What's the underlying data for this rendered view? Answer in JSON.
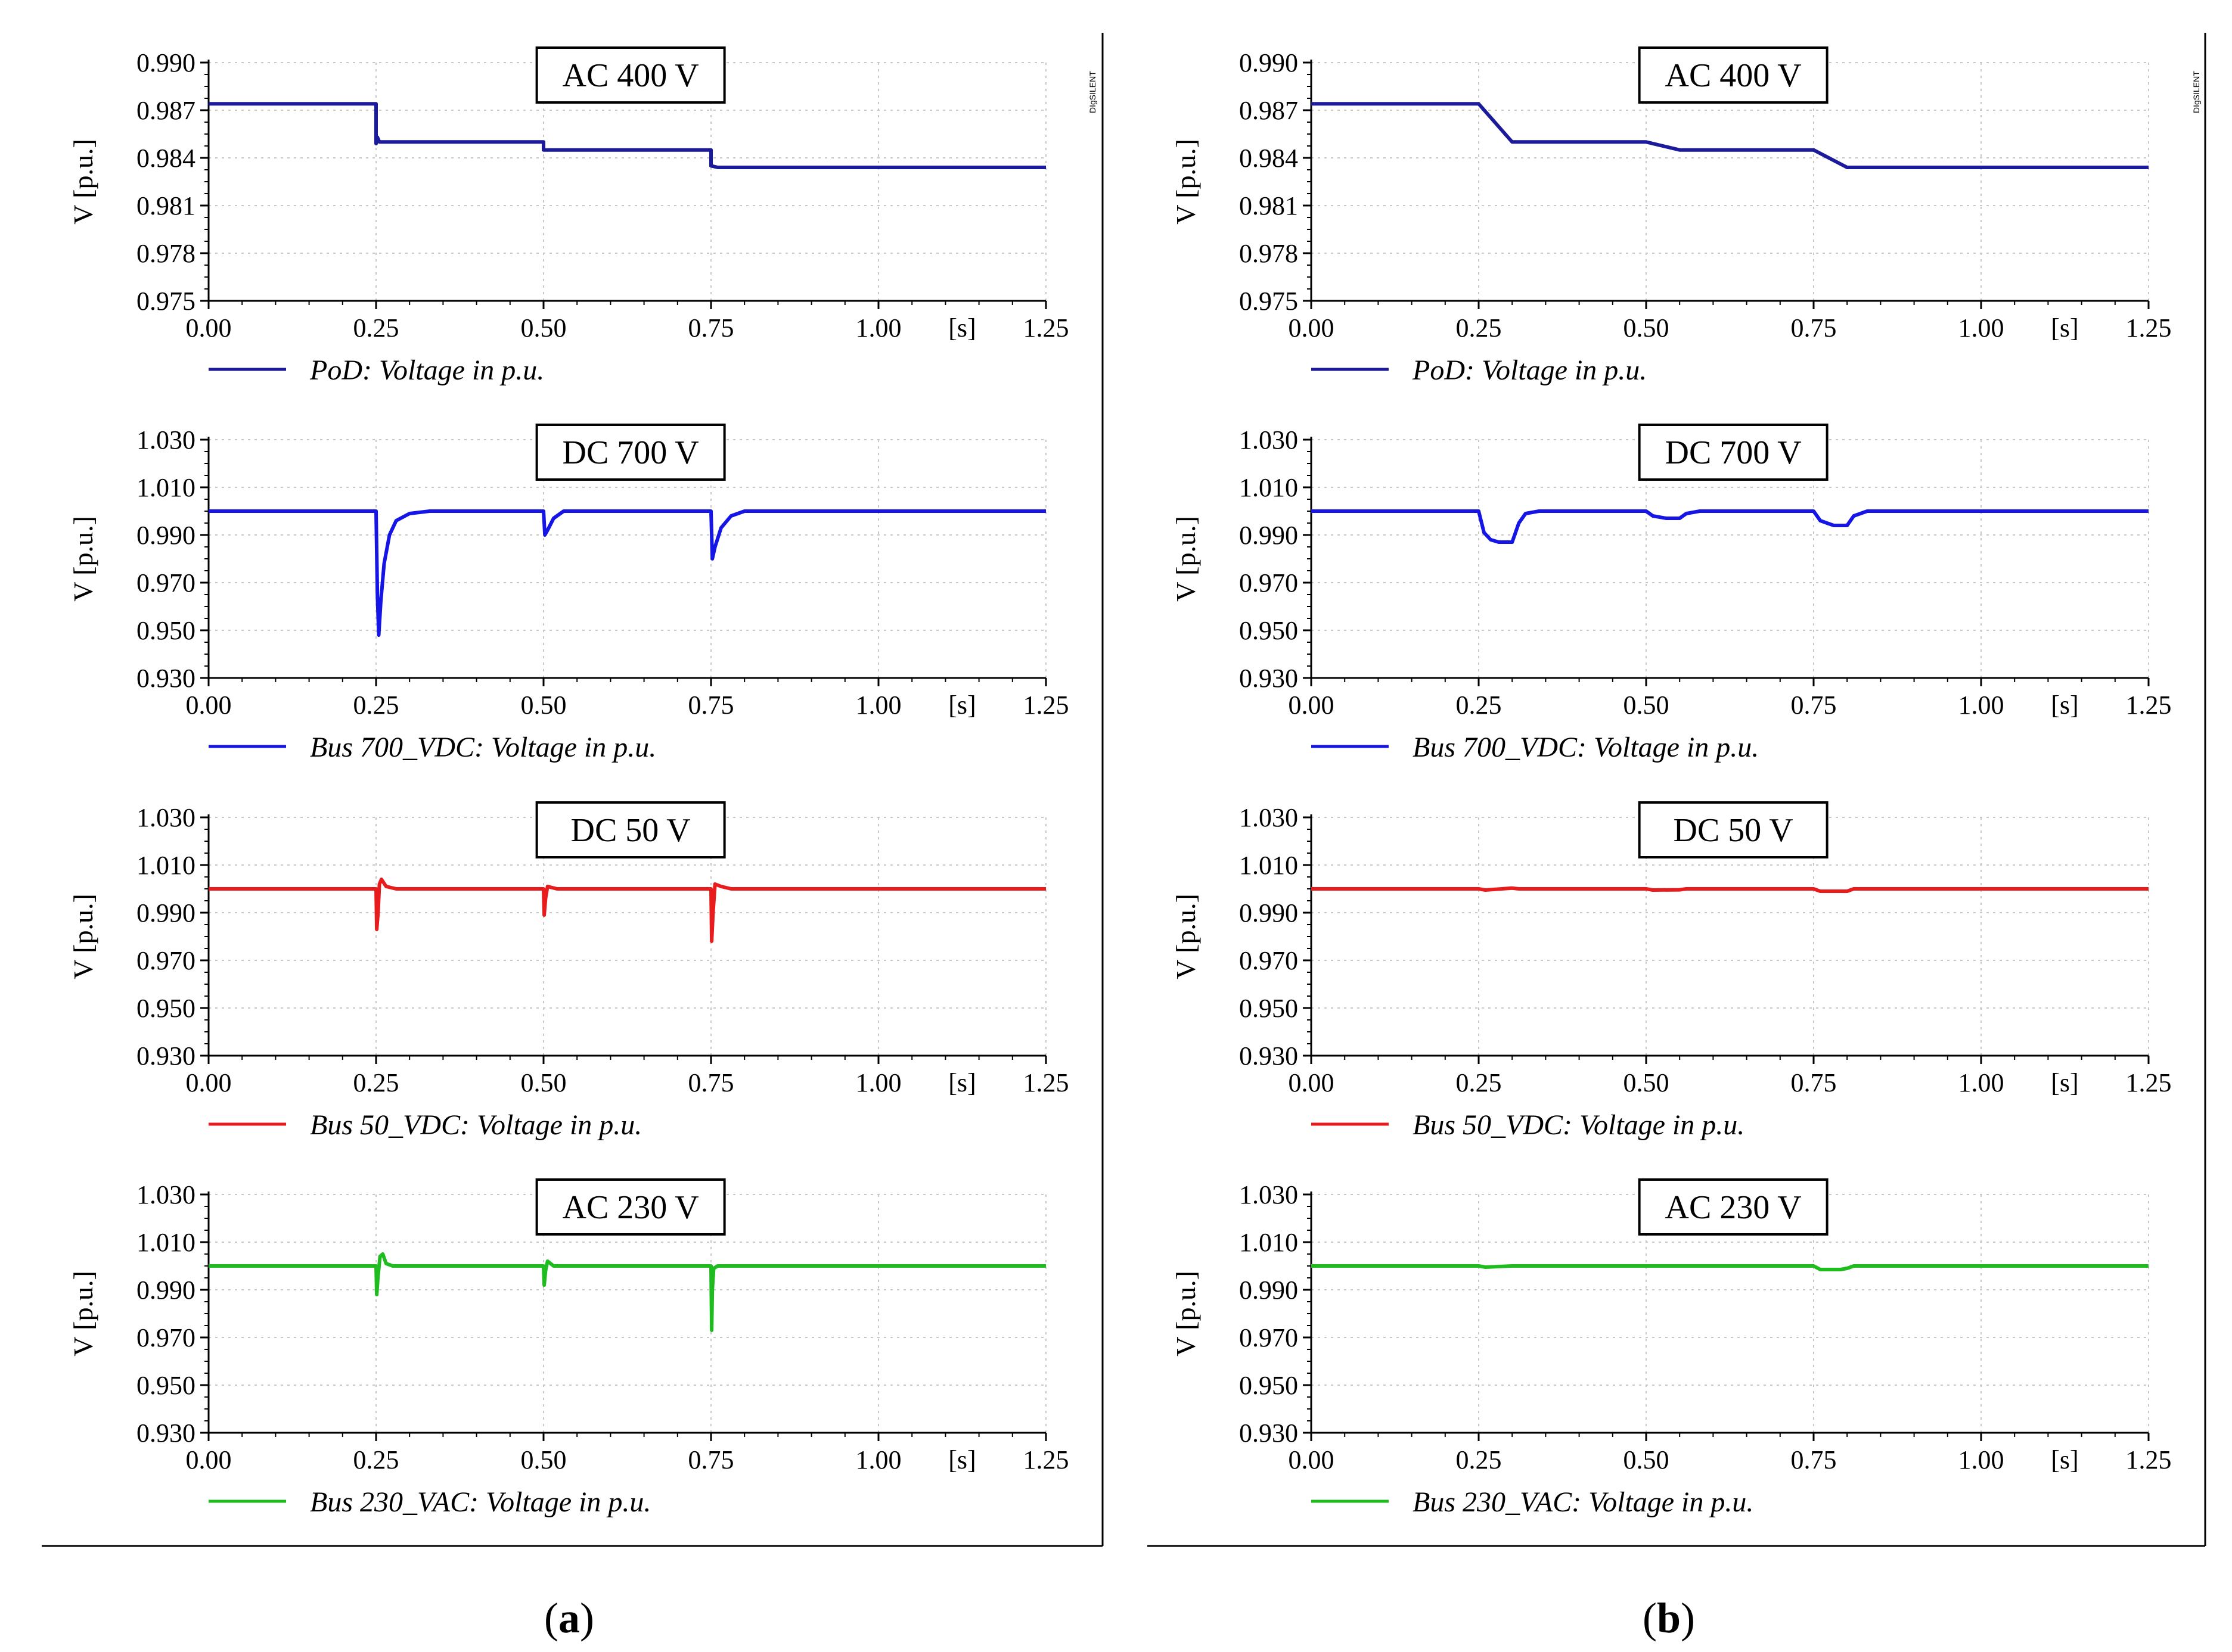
{
  "panels": [
    {
      "id": "a",
      "caption": "a",
      "brand": "DIgSILENT"
    },
    {
      "id": "b",
      "caption": "b",
      "brand": "DIgSILENT"
    }
  ],
  "chart_data": [
    {
      "type": "line",
      "panel": "a",
      "title": "AC 400 V",
      "xlabel": "[s]",
      "ylabel": "V [p.u.]",
      "xlim": [
        0,
        1.25
      ],
      "ylim": [
        0.975,
        0.99
      ],
      "xticks": [
        "0.00",
        "0.25",
        "0.50",
        "0.75",
        "1.00",
        "1.25"
      ],
      "yticks": [
        "0.975",
        "0.978",
        "0.981",
        "0.984",
        "0.987",
        "0.990"
      ],
      "legend": "PoD: Voltage in p.u.",
      "color": "#1a1a9a",
      "series": [
        {
          "name": "PoD: Voltage in p.u.",
          "x": [
            0,
            0.25,
            0.25,
            0.252,
            0.255,
            0.26,
            0.5,
            0.5,
            0.75,
            0.75,
            0.76,
            1.25
          ],
          "values": [
            0.9874,
            0.9874,
            0.9849,
            0.9853,
            0.985,
            0.985,
            0.985,
            0.9845,
            0.9845,
            0.9835,
            0.9834,
            0.9834
          ]
        }
      ]
    },
    {
      "type": "line",
      "panel": "a",
      "title": "DC 700 V",
      "xlabel": "[s]",
      "ylabel": "V [p.u.]",
      "xlim": [
        0,
        1.25
      ],
      "ylim": [
        0.93,
        1.03
      ],
      "xticks": [
        "0.00",
        "0.25",
        "0.50",
        "0.75",
        "1.00",
        "1.25"
      ],
      "yticks": [
        "0.930",
        "0.950",
        "0.970",
        "0.990",
        "1.010",
        "1.030"
      ],
      "legend": "Bus 700_VDC: Voltage in p.u.",
      "color": "#1515e6",
      "series": [
        {
          "name": "Bus 700_VDC: Voltage in p.u.",
          "x": [
            0,
            0.25,
            0.252,
            0.254,
            0.257,
            0.262,
            0.27,
            0.28,
            0.3,
            0.33,
            0.5,
            0.502,
            0.506,
            0.515,
            0.53,
            0.75,
            0.752,
            0.756,
            0.765,
            0.78,
            0.8,
            1.25
          ],
          "values": [
            1.0,
            1.0,
            0.965,
            0.948,
            0.962,
            0.978,
            0.99,
            0.996,
            0.999,
            1.0,
            1.0,
            0.99,
            0.992,
            0.997,
            1.0,
            1.0,
            0.98,
            0.985,
            0.993,
            0.998,
            1.0,
            1.0
          ]
        }
      ]
    },
    {
      "type": "line",
      "panel": "a",
      "title": "DC 50 V",
      "xlabel": "[s]",
      "ylabel": "V [p.u.]",
      "xlim": [
        0,
        1.25
      ],
      "ylim": [
        0.93,
        1.03
      ],
      "xticks": [
        "0.00",
        "0.25",
        "0.50",
        "0.75",
        "1.00",
        "1.25"
      ],
      "yticks": [
        "0.930",
        "0.950",
        "0.970",
        "0.990",
        "1.010",
        "1.030"
      ],
      "legend": "Bus 50_VDC: Voltage in p.u.",
      "color": "#e81c1c",
      "series": [
        {
          "name": "Bus 50_VDC: Voltage in p.u.",
          "x": [
            0,
            0.25,
            0.251,
            0.253,
            0.255,
            0.258,
            0.265,
            0.28,
            0.5,
            0.501,
            0.503,
            0.506,
            0.52,
            0.75,
            0.751,
            0.753,
            0.756,
            0.765,
            0.78,
            1.25
          ],
          "values": [
            1.0,
            1.0,
            0.983,
            0.99,
            1.002,
            1.004,
            1.001,
            1.0,
            1.0,
            0.989,
            0.996,
            1.001,
            1.0,
            1.0,
            0.978,
            0.99,
            1.002,
            1.001,
            1.0,
            1.0
          ]
        }
      ]
    },
    {
      "type": "line",
      "panel": "a",
      "title": "AC 230 V",
      "xlabel": "[s]",
      "ylabel": "V [p.u.]",
      "xlim": [
        0,
        1.25
      ],
      "ylim": [
        0.93,
        1.03
      ],
      "xticks": [
        "0.00",
        "0.25",
        "0.50",
        "0.75",
        "1.00",
        "1.25"
      ],
      "yticks": [
        "0.930",
        "0.950",
        "0.970",
        "0.990",
        "1.010",
        "1.030"
      ],
      "legend": "Bus 230_VAC: Voltage in p.u.",
      "color": "#1ebc1e",
      "series": [
        {
          "name": "Bus 230_VAC: Voltage in p.u.",
          "x": [
            0,
            0.25,
            0.251,
            0.253,
            0.256,
            0.26,
            0.265,
            0.275,
            0.5,
            0.501,
            0.503,
            0.506,
            0.515,
            0.75,
            0.751,
            0.752,
            0.754,
            0.76,
            1.25
          ],
          "values": [
            1.0,
            1.0,
            0.988,
            0.996,
            1.004,
            1.005,
            1.001,
            1.0,
            1.0,
            0.992,
            0.998,
            1.002,
            1.0,
            1.0,
            0.973,
            0.99,
            0.999,
            1.0,
            1.0
          ]
        }
      ]
    },
    {
      "type": "line",
      "panel": "b",
      "title": "AC 400 V",
      "xlabel": "[s]",
      "ylabel": "V [p.u.]",
      "xlim": [
        0,
        1.25
      ],
      "ylim": [
        0.975,
        0.99
      ],
      "xticks": [
        "0.00",
        "0.25",
        "0.50",
        "0.75",
        "1.00",
        "1.25"
      ],
      "yticks": [
        "0.975",
        "0.978",
        "0.981",
        "0.984",
        "0.987",
        "0.990"
      ],
      "legend": "PoD: Voltage in p.u.",
      "color": "#1a1a9a",
      "series": [
        {
          "name": "PoD: Voltage in p.u.",
          "x": [
            0,
            0.25,
            0.3,
            0.5,
            0.55,
            0.75,
            0.8,
            1.25
          ],
          "values": [
            0.9874,
            0.9874,
            0.985,
            0.985,
            0.9845,
            0.9845,
            0.9834,
            0.9834
          ]
        }
      ]
    },
    {
      "type": "line",
      "panel": "b",
      "title": "DC 700 V",
      "xlabel": "[s]",
      "ylabel": "V [p.u.]",
      "xlim": [
        0,
        1.25
      ],
      "ylim": [
        0.93,
        1.03
      ],
      "xticks": [
        "0.00",
        "0.25",
        "0.50",
        "0.75",
        "1.00",
        "1.25"
      ],
      "yticks": [
        "0.930",
        "0.950",
        "0.970",
        "0.990",
        "1.010",
        "1.030"
      ],
      "legend": "Bus 700_VDC: Voltage in p.u.",
      "color": "#1515e6",
      "series": [
        {
          "name": "Bus 700_VDC: Voltage in p.u.",
          "x": [
            0,
            0.25,
            0.258,
            0.268,
            0.28,
            0.3,
            0.31,
            0.32,
            0.34,
            0.5,
            0.51,
            0.53,
            0.55,
            0.56,
            0.58,
            0.75,
            0.76,
            0.78,
            0.8,
            0.81,
            0.83,
            1.25
          ],
          "values": [
            1.0,
            1.0,
            0.991,
            0.988,
            0.987,
            0.987,
            0.995,
            0.999,
            1.0,
            1.0,
            0.998,
            0.997,
            0.997,
            0.999,
            1.0,
            1.0,
            0.996,
            0.994,
            0.994,
            0.998,
            1.0,
            1.0
          ]
        }
      ]
    },
    {
      "type": "line",
      "panel": "b",
      "title": "DC 50 V",
      "xlabel": "[s]",
      "ylabel": "V [p.u.]",
      "xlim": [
        0,
        1.25
      ],
      "ylim": [
        0.93,
        1.03
      ],
      "xticks": [
        "0.00",
        "0.25",
        "0.50",
        "0.75",
        "1.00",
        "1.25"
      ],
      "yticks": [
        "0.930",
        "0.950",
        "0.970",
        "0.990",
        "1.010",
        "1.030"
      ],
      "legend": "Bus 50_VDC: Voltage in p.u.",
      "color": "#e81c1c",
      "series": [
        {
          "name": "Bus 50_VDC: Voltage in p.u.",
          "x": [
            0,
            0.25,
            0.26,
            0.3,
            0.31,
            0.5,
            0.51,
            0.55,
            0.56,
            0.75,
            0.76,
            0.8,
            0.81,
            1.25
          ],
          "values": [
            1.0,
            1.0,
            0.9995,
            1.0003,
            1.0,
            1.0,
            0.9995,
            0.9996,
            1.0,
            1.0,
            0.999,
            0.999,
            1.0,
            1.0
          ]
        }
      ]
    },
    {
      "type": "line",
      "panel": "b",
      "title": "AC 230 V",
      "xlabel": "[s]",
      "ylabel": "V [p.u.]",
      "xlim": [
        0,
        1.25
      ],
      "ylim": [
        0.93,
        1.03
      ],
      "xticks": [
        "0.00",
        "0.25",
        "0.50",
        "0.75",
        "1.00",
        "1.25"
      ],
      "yticks": [
        "0.930",
        "0.950",
        "0.970",
        "0.990",
        "1.010",
        "1.030"
      ],
      "legend": "Bus 230_VAC: Voltage in p.u.",
      "color": "#1ebc1e",
      "series": [
        {
          "name": "Bus 230_VAC: Voltage in p.u.",
          "x": [
            0,
            0.25,
            0.26,
            0.3,
            0.75,
            0.76,
            0.79,
            0.8,
            0.81,
            1.25
          ],
          "values": [
            1.0,
            1.0,
            0.9995,
            1.0,
            1.0,
            0.9985,
            0.9985,
            0.999,
            1.0,
            1.0
          ]
        }
      ]
    }
  ]
}
